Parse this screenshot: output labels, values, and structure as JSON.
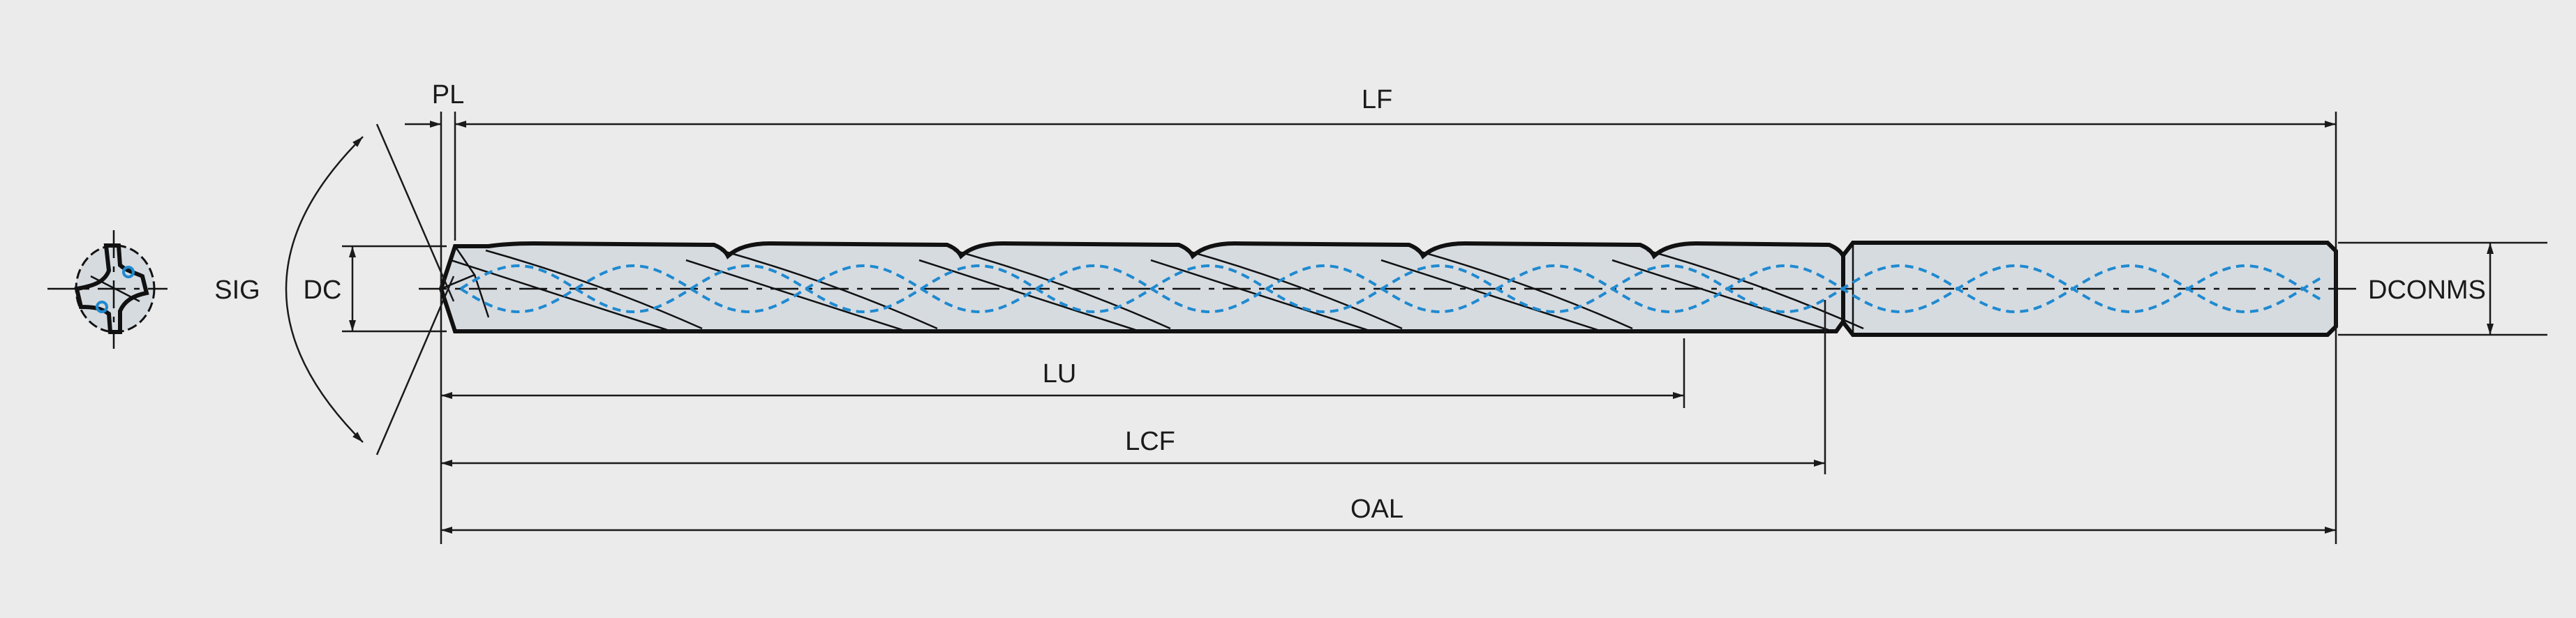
{
  "labels": {
    "pl": "PL",
    "lf": "LF",
    "sig": "SIG",
    "dc": "DC",
    "lu": "LU",
    "lcf": "LCF",
    "oal": "OAL",
    "dconms": "DCONMS"
  },
  "colors": {
    "background": "#ebebeb",
    "tool_fill": "#d6dbe0",
    "outline": "#111111",
    "coolant_channel": "#1f8ad0"
  }
}
